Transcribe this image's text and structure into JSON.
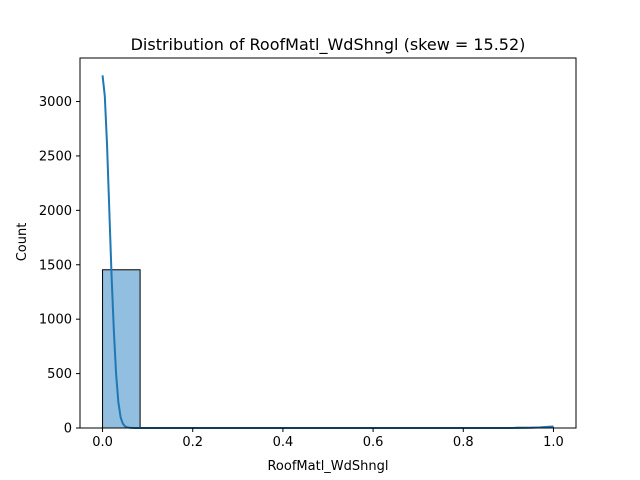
{
  "chart_data": {
    "type": "bar",
    "title": "Distribution of RoofMatl_WdShngl (skew = 15.52)",
    "xlabel": "RoofMatl_WdShngl",
    "ylabel": "Count",
    "xlim": [
      -0.05,
      1.05
    ],
    "ylim": [
      0,
      3400
    ],
    "xticks": [
      0.0,
      0.2,
      0.4,
      0.6,
      0.8,
      1.0
    ],
    "xtick_labels": [
      "0.0",
      "0.2",
      "0.4",
      "0.6",
      "0.8",
      "1.0"
    ],
    "yticks": [
      0,
      500,
      1000,
      1500,
      2000,
      2500,
      3000
    ],
    "ytick_labels": [
      "0",
      "500",
      "1000",
      "1500",
      "2000",
      "2500",
      "3000"
    ],
    "bins": [
      {
        "x0": 0.0,
        "x1": 0.0833,
        "count": 1454
      },
      {
        "x0": 0.9167,
        "x1": 1.0,
        "count": 6
      }
    ],
    "kde": {
      "x": [
        0.0,
        0.005,
        0.01,
        0.015,
        0.02,
        0.025,
        0.03,
        0.035,
        0.04,
        0.045,
        0.05,
        0.055,
        0.06,
        0.07,
        0.08,
        0.1,
        0.2,
        0.4,
        0.6,
        0.8,
        0.9,
        0.95,
        0.97,
        0.99,
        1.0
      ],
      "y": [
        3240,
        3050,
        2600,
        2000,
        1400,
        900,
        500,
        240,
        100,
        40,
        15,
        6,
        2,
        0.5,
        0,
        0,
        0,
        0,
        0,
        0,
        0,
        2,
        6,
        12,
        14
      ]
    },
    "colors": {
      "bar_fill": "#92bedf",
      "bar_edge": "#000000",
      "kde_line": "#1f77b4"
    },
    "grid": false,
    "legend": false
  }
}
